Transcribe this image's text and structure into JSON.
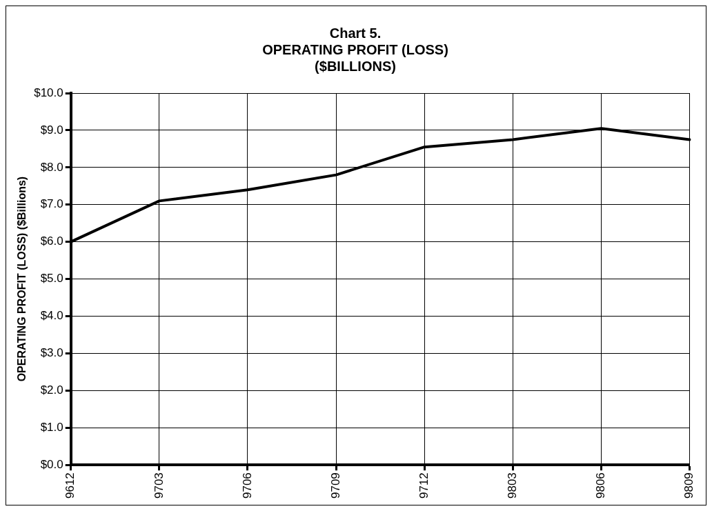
{
  "chart_data": {
    "type": "line",
    "title": "Chart 5.\nOPERATING PROFIT (LOSS)\n($BILLIONS)",
    "ylabel": "OPERATING PROFIT (LOSS) ($Billions)",
    "categories": [
      "9612",
      "9703",
      "9706",
      "9709",
      "9712",
      "9803",
      "9806",
      "9809"
    ],
    "series": [
      {
        "color": "#000000",
        "values": [
          6.0,
          7.1,
          7.4,
          7.8,
          8.55,
          8.75,
          9.05,
          8.75
        ]
      }
    ],
    "ylim": [
      0,
      10
    ],
    "yticks": [
      {
        "value": 0,
        "label": "$0.0"
      },
      {
        "value": 1,
        "label": "$1.0"
      },
      {
        "value": 2,
        "label": "$2.0"
      },
      {
        "value": 3,
        "label": "$3.0"
      },
      {
        "value": 4,
        "label": "$4.0"
      },
      {
        "value": 5,
        "label": "$5.0"
      },
      {
        "value": 6,
        "label": "$6.0"
      },
      {
        "value": 7,
        "label": "$7.0"
      },
      {
        "value": 8,
        "label": "$8.0"
      },
      {
        "value": 9,
        "label": "$9.0"
      },
      {
        "value": 10,
        "label": "$10.0"
      }
    ],
    "grid": true,
    "legend": false,
    "marker": "none",
    "line_style": "solid"
  }
}
